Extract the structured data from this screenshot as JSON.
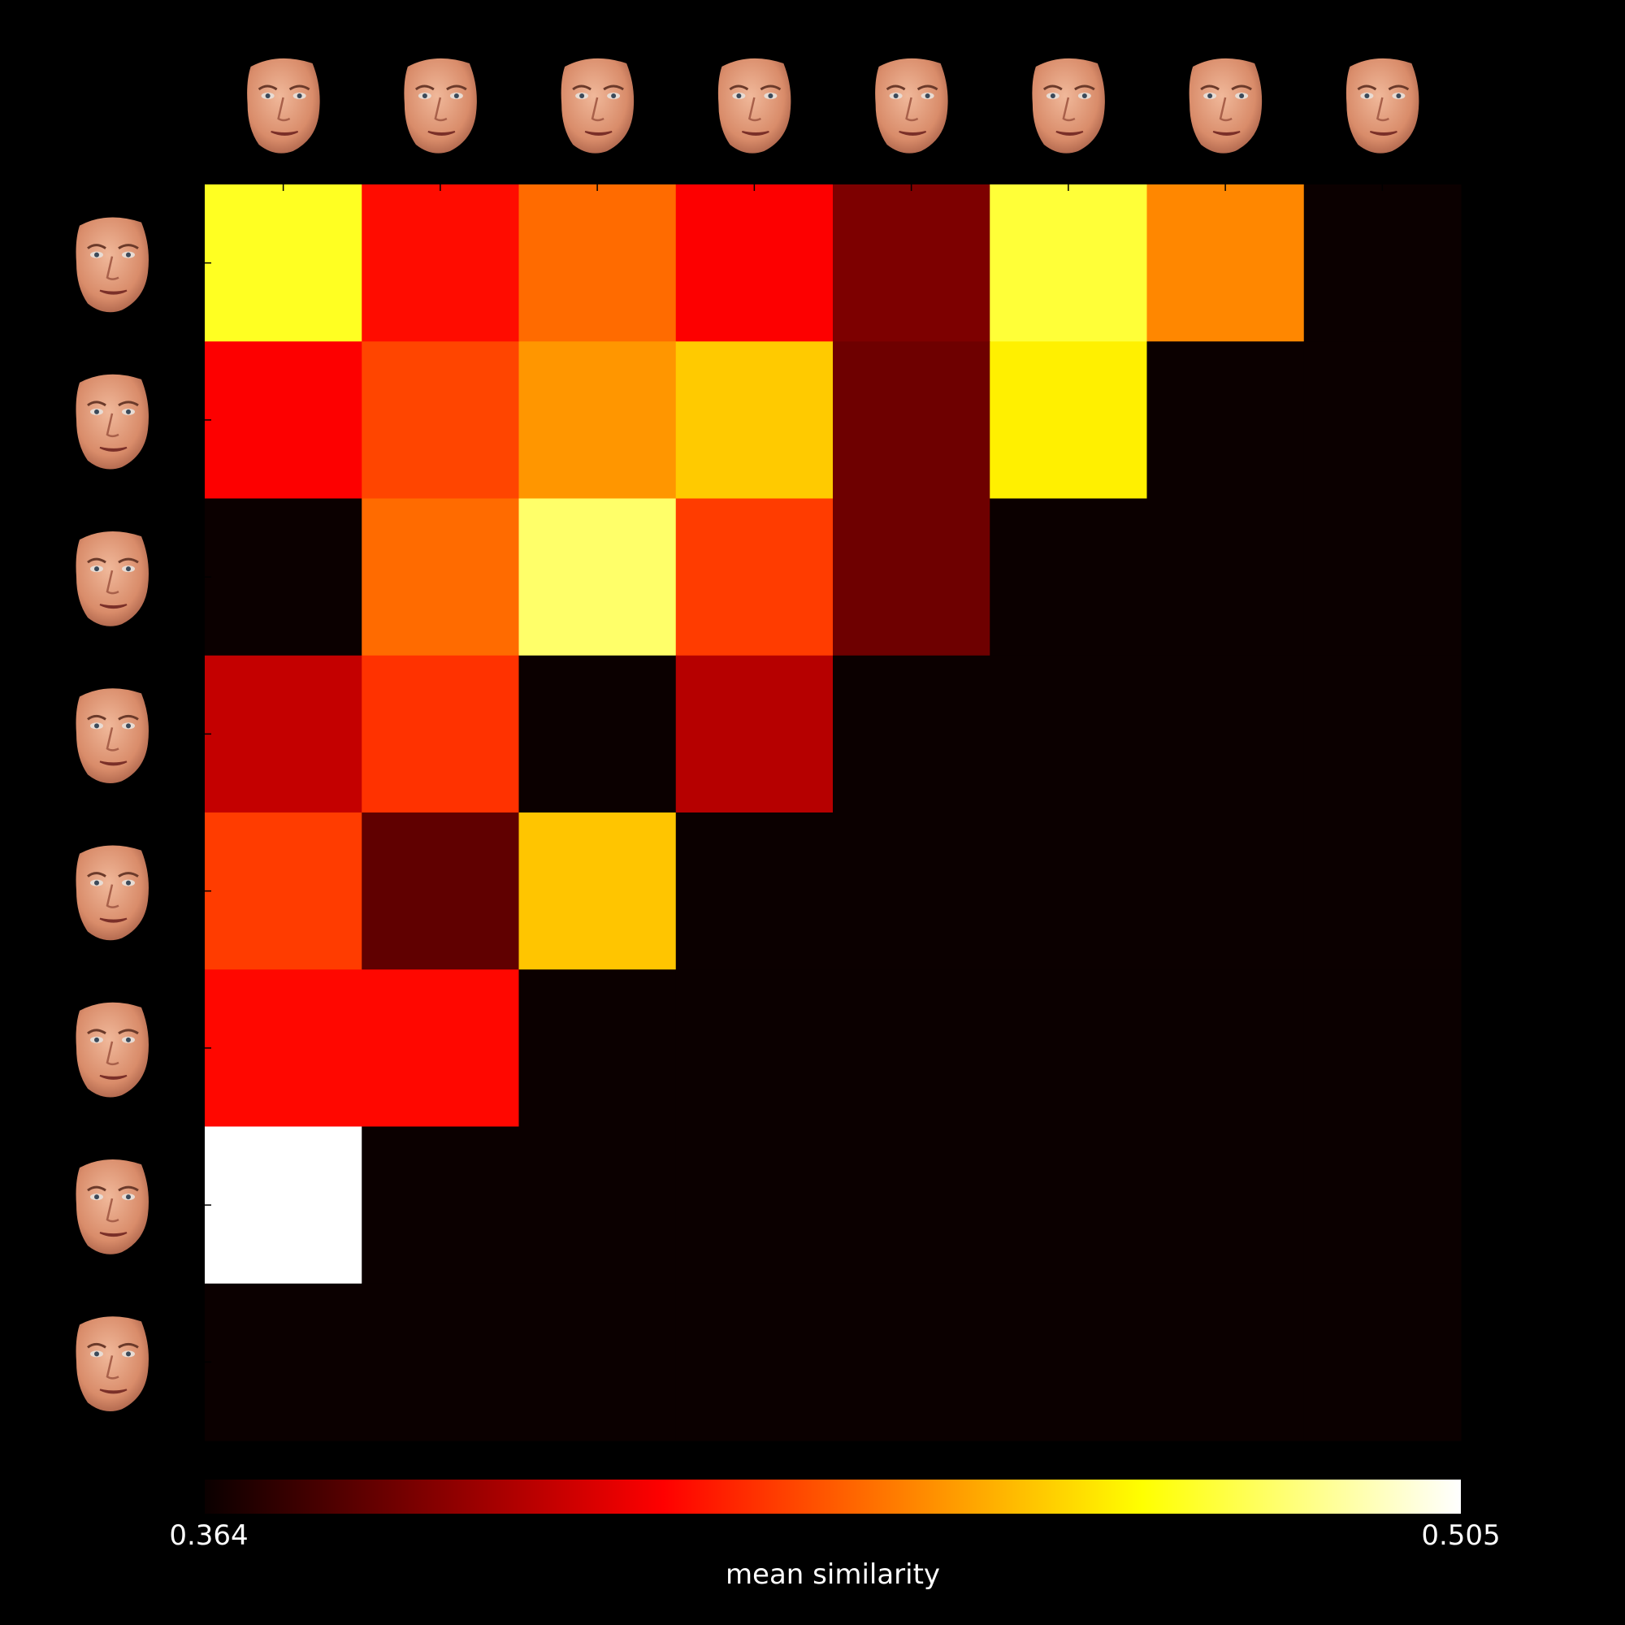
{
  "chart_data": {
    "type": "heatmap",
    "title": "",
    "xlabel": "",
    "ylabel": "",
    "row_labels_note": "face thumbnails",
    "n_rows": 8,
    "n_cols": 8,
    "values": [
      [
        0.474,
        0.418,
        0.438,
        0.415,
        0.388,
        0.477,
        0.444,
        0.364
      ],
      [
        0.415,
        0.43,
        0.447,
        0.458,
        0.385,
        0.466,
        0.364,
        0.364
      ],
      [
        0.364,
        0.438,
        0.484,
        0.428,
        0.385,
        0.364,
        0.364,
        0.364
      ],
      [
        0.403,
        0.426,
        0.364,
        0.4,
        0.364,
        0.364,
        0.364,
        0.364
      ],
      [
        0.428,
        0.382,
        0.457,
        0.364,
        0.364,
        0.364,
        0.364,
        0.364
      ],
      [
        0.417,
        0.417,
        0.364,
        0.364,
        0.364,
        0.364,
        0.364,
        0.364
      ],
      [
        0.505,
        0.364,
        0.364,
        0.364,
        0.364,
        0.364,
        0.364,
        0.364
      ],
      [
        0.364,
        0.364,
        0.364,
        0.364,
        0.364,
        0.364,
        0.364,
        0.364
      ]
    ],
    "colormap": "hot",
    "colorbar": {
      "min": 0.364,
      "max": 0.505,
      "min_label": "0.364",
      "max_label": "0.505",
      "label": "mean similarity",
      "orientation": "horizontal",
      "placement": "bottom"
    },
    "grid": false,
    "background": "#000000"
  }
}
